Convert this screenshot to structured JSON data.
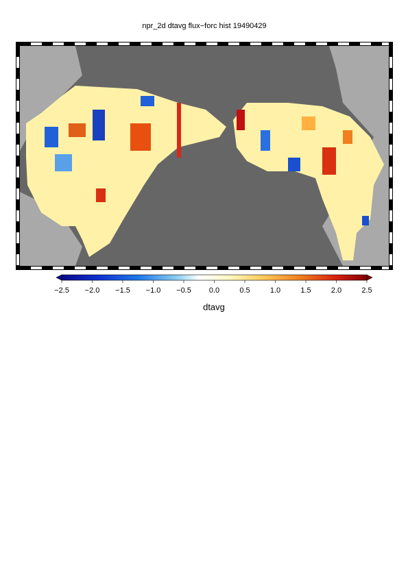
{
  "title": "npr_2d dtavg flux−forc hist 19490429",
  "colorbar": {
    "label": "dtavg",
    "lim": [
      -2.5,
      2.5
    ],
    "ticks": [
      {
        "value": -2.5,
        "label": "−2.5"
      },
      {
        "value": -2.0,
        "label": "−2.0"
      },
      {
        "value": -1.5,
        "label": "−1.5"
      },
      {
        "value": -1.0,
        "label": "−1.0"
      },
      {
        "value": -0.5,
        "label": "−0.5"
      },
      {
        "value": 0.0,
        "label": "0.0"
      },
      0.5,
      {
        "value": 1.0,
        "label": "1.0"
      },
      1.5,
      {
        "value": 2.0,
        "label": "2.0"
      },
      2.5
    ]
  }
}
